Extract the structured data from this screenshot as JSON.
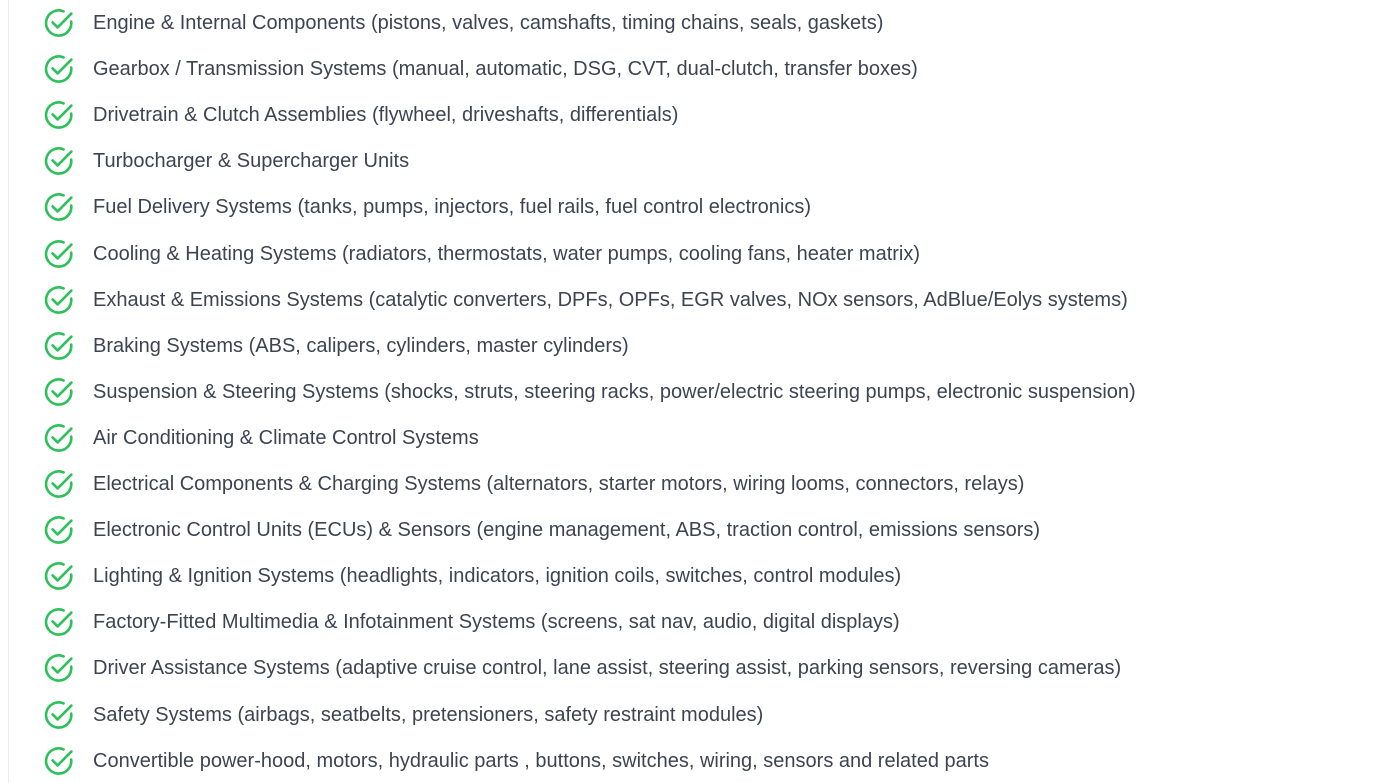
{
  "colors": {
    "check_icon": "#2cc15a",
    "text": "#3d4451"
  },
  "icon": "circle-check-icon",
  "coverage_items": [
    "Engine & Internal Components (pistons, valves, camshafts, timing chains, seals, gaskets)",
    "Gearbox / Transmission Systems (manual, automatic, DSG, CVT, dual-clutch, transfer boxes)",
    "Drivetrain & Clutch Assemblies (flywheel, driveshafts, differentials)",
    "Turbocharger & Supercharger Units",
    "Fuel Delivery Systems (tanks, pumps, injectors, fuel rails, fuel control electronics)",
    "Cooling & Heating Systems (radiators, thermostats, water pumps, cooling fans, heater matrix)",
    "Exhaust & Emissions Systems (catalytic converters, DPFs, OPFs, EGR valves, NOx sensors, AdBlue/Eolys systems)",
    "Braking Systems (ABS, calipers, cylinders, master cylinders)",
    "Suspension & Steering Systems (shocks, struts, steering racks, power/electric steering pumps, electronic suspension)",
    "Air Conditioning & Climate Control Systems",
    "Electrical Components & Charging Systems (alternators, starter motors, wiring looms, connectors, relays)",
    "Electronic Control Units (ECUs) & Sensors (engine management, ABS, traction control, emissions sensors)",
    "Lighting & Ignition Systems (headlights, indicators, ignition coils, switches, control modules)",
    "Factory-Fitted Multimedia & Infotainment Systems (screens, sat nav, audio, digital displays)",
    "Driver Assistance Systems (adaptive cruise control, lane assist, steering assist, parking sensors, reversing cameras)",
    "Safety Systems (airbags, seatbelts, pretensioners, safety restraint modules)",
    "Convertible power-hood, motors, hydraulic parts , buttons, switches, wiring, sensors and related parts"
  ]
}
